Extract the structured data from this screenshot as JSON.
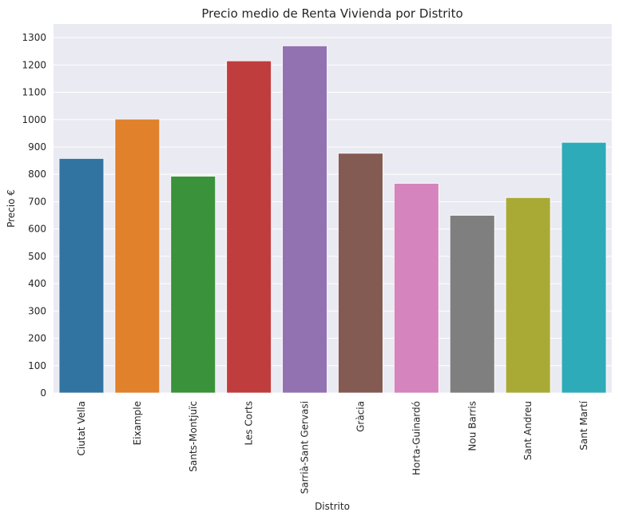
{
  "chart_data": {
    "type": "bar",
    "title": "Precio medio de Renta Vivienda por Distrito",
    "xlabel": "Distrito",
    "ylabel": "Precio €",
    "ylim": [
      0,
      1350
    ],
    "yticks": [
      "0",
      "100",
      "200",
      "300",
      "400",
      "500",
      "600",
      "700",
      "800",
      "900",
      "1000",
      "1100",
      "1200",
      "1300"
    ],
    "grid": true,
    "categories": [
      "Ciutat Vella",
      "Eixample",
      "Sants-Montjuïc",
      "Les Corts",
      "Sarrià-Sant Gervasi",
      "Gràcia",
      "Horta-Guinardó",
      "Nou Barris",
      "Sant Andreu",
      "Sant Martí"
    ],
    "values": [
      858,
      1002,
      793,
      1215,
      1270,
      877,
      767,
      650,
      715,
      917
    ],
    "colors": [
      "#3274a1",
      "#e1812c",
      "#3a923a",
      "#c03d3e",
      "#9372b2",
      "#845b53",
      "#d684bd",
      "#7f7f7f",
      "#a9aa35",
      "#2eabb8"
    ],
    "background": "#eaeaf2"
  }
}
